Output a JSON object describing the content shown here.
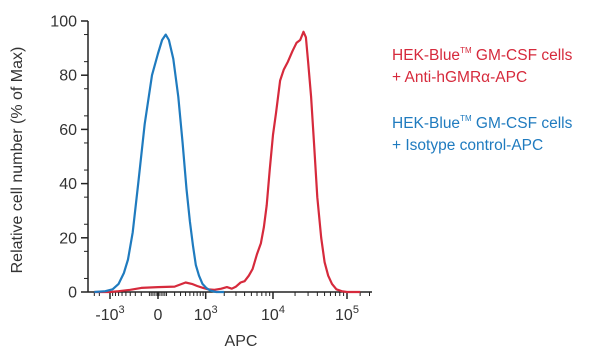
{
  "colors": {
    "series_red": "#d62a3c",
    "series_blue": "#1f7bbf",
    "axis": "#222222",
    "text": "#333333"
  },
  "legend": {
    "red": {
      "line1_pre": "HEK-Blue",
      "line1_tm": "TM",
      "line1_post": " GM-CSF cells",
      "line2": "+ Anti-hGMRα-APC"
    },
    "blue": {
      "line1_pre": "HEK-Blue",
      "line1_tm": "TM",
      "line1_post": " GM-CSF cells",
      "line2": "+ Isotype control-APC"
    }
  },
  "chart_data": {
    "type": "line",
    "title": "",
    "xlabel": "APC",
    "ylabel": "Relative cell number (% of Max)",
    "ylim": [
      0,
      100
    ],
    "yticks": [
      0,
      20,
      40,
      60,
      80,
      100
    ],
    "xscale": "biexponential",
    "xticks": [
      {
        "value": -1000,
        "base": "-10",
        "exp": "3"
      },
      {
        "value": 0,
        "base": "0",
        "exp": ""
      },
      {
        "value": 1000,
        "base": "10",
        "exp": "3"
      },
      {
        "value": 10000,
        "base": "10",
        "exp": "4"
      },
      {
        "value": 100000,
        "base": "10",
        "exp": "5"
      }
    ],
    "series": [
      {
        "name": "HEK-Blue™ GM-CSF cells + Anti-hGMRα-APC",
        "color": "#d62a3c",
        "points": [
          [
            -1800,
            0
          ],
          [
            -1300,
            0
          ],
          [
            -1000,
            0
          ],
          [
            -700,
            0.3
          ],
          [
            -400,
            0.8
          ],
          [
            -200,
            1.5
          ],
          [
            0,
            1.8
          ],
          [
            200,
            2
          ],
          [
            400,
            3.5
          ],
          [
            550,
            3
          ],
          [
            700,
            2.2
          ],
          [
            900,
            1.5
          ],
          [
            1100,
            1
          ],
          [
            1400,
            0.8
          ],
          [
            1800,
            1.2
          ],
          [
            2200,
            1.8
          ],
          [
            2600,
            1.2
          ],
          [
            3000,
            2
          ],
          [
            3500,
            3.5
          ],
          [
            4000,
            4
          ],
          [
            4600,
            6
          ],
          [
            5200,
            8.5
          ],
          [
            6000,
            14
          ],
          [
            6800,
            18
          ],
          [
            7500,
            24
          ],
          [
            8200,
            32
          ],
          [
            9000,
            45
          ],
          [
            10000,
            58
          ],
          [
            11000,
            66
          ],
          [
            12500,
            78
          ],
          [
            14000,
            82
          ],
          [
            16000,
            85
          ],
          [
            18500,
            89
          ],
          [
            21000,
            92
          ],
          [
            23500,
            93
          ],
          [
            26000,
            96
          ],
          [
            28000,
            94
          ],
          [
            30000,
            85
          ],
          [
            33000,
            72
          ],
          [
            36000,
            55
          ],
          [
            40000,
            35
          ],
          [
            45000,
            20
          ],
          [
            50000,
            11
          ],
          [
            56000,
            6
          ],
          [
            63000,
            3
          ],
          [
            72000,
            1
          ],
          [
            85000,
            0.3
          ],
          [
            100000,
            0
          ],
          [
            150000,
            0
          ]
        ]
      },
      {
        "name": "HEK-Blue™ GM-CSF cells + Isotype control-APC",
        "color": "#1f7bbf",
        "points": [
          [
            -1800,
            0
          ],
          [
            -1200,
            0.3
          ],
          [
            -900,
            1
          ],
          [
            -700,
            3
          ],
          [
            -550,
            7
          ],
          [
            -450,
            12
          ],
          [
            -350,
            22
          ],
          [
            -250,
            40
          ],
          [
            -150,
            62
          ],
          [
            -60,
            80
          ],
          [
            0,
            88
          ],
          [
            40,
            93
          ],
          [
            80,
            95
          ],
          [
            120,
            93
          ],
          [
            180,
            86
          ],
          [
            260,
            72
          ],
          [
            340,
            55
          ],
          [
            420,
            38
          ],
          [
            500,
            26
          ],
          [
            580,
            17
          ],
          [
            660,
            10
          ],
          [
            760,
            6
          ],
          [
            880,
            3
          ],
          [
            1020,
            1.5
          ],
          [
            1200,
            0.5
          ],
          [
            1500,
            0
          ],
          [
            2000,
            0
          ]
        ]
      }
    ]
  }
}
